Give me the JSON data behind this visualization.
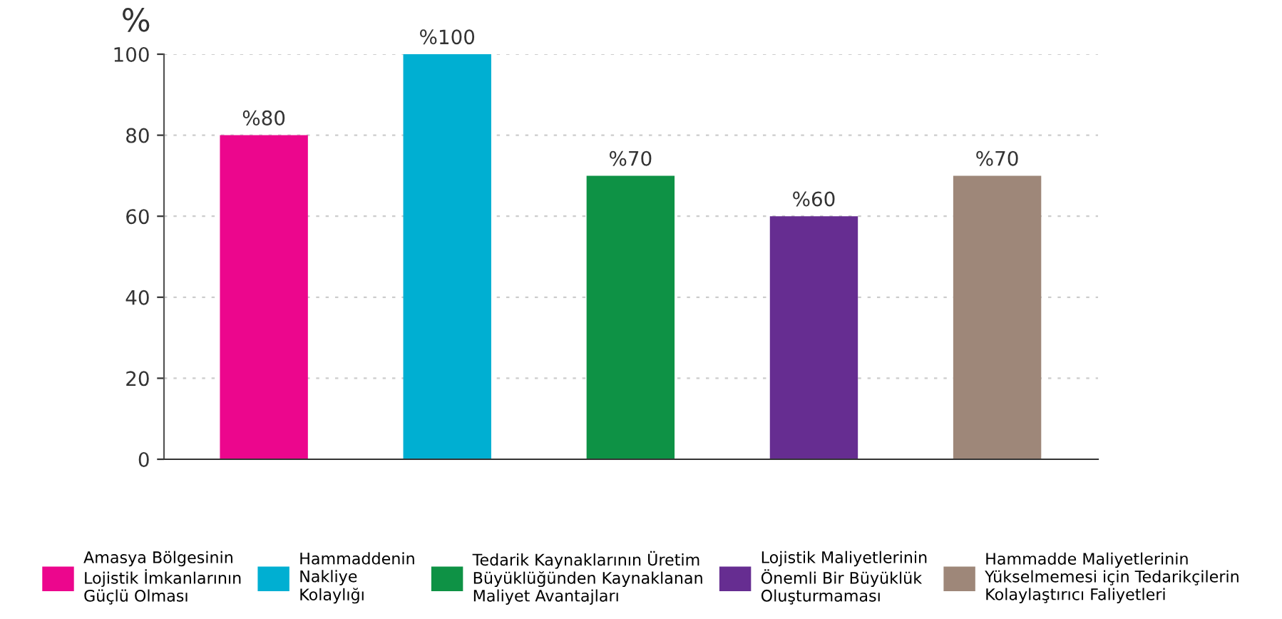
{
  "chart_data": {
    "type": "bar",
    "ylabel": "%",
    "categories": [
      null,
      null,
      null,
      null,
      null
    ],
    "series": [
      {
        "name": "Amasya Bölgesinin\nLojistik İmkanlarının\nGüçlü Olması",
        "color": "#ec068d",
        "values": [
          80,
          null,
          null,
          null,
          null
        ],
        "value_labels": [
          "%80",
          null,
          null,
          null,
          null
        ]
      },
      {
        "name": "Hammaddenin\nNakliye\nKolaylığı",
        "color": "#00afd2",
        "values": [
          null,
          100,
          null,
          null,
          null
        ],
        "value_labels": [
          null,
          "%100",
          null,
          null,
          null
        ]
      },
      {
        "name": "Tedarik Kaynaklarının Üretim\nBüyüklüğünden Kaynaklanan\nMaliyet Avantajları",
        "color": "#0e9245",
        "values": [
          null,
          null,
          70,
          null,
          null
        ],
        "value_labels": [
          null,
          null,
          "%70",
          null,
          null
        ]
      },
      {
        "name": "Lojistik Maliyetlerinin\nÖnemli Bir Büyüklük\nOluşturmaması",
        "color": "#662d91",
        "values": [
          null,
          null,
          null,
          60,
          null
        ],
        "value_labels": [
          null,
          null,
          null,
          "%60",
          null
        ]
      },
      {
        "name": "Hammadde Maliyetlerinin\nYükselmemesi için Tedarikçilerin\nKolaylaştırıcı Faliyetleri",
        "color": "#9e8779",
        "values": [
          null,
          null,
          null,
          null,
          70
        ],
        "value_labels": [
          null,
          null,
          null,
          null,
          "%70"
        ]
      }
    ],
    "ylim": [
      0,
      100
    ],
    "yticks": [
      0,
      20,
      40,
      60,
      80,
      100
    ],
    "grid": "y",
    "legend": "bottom"
  }
}
